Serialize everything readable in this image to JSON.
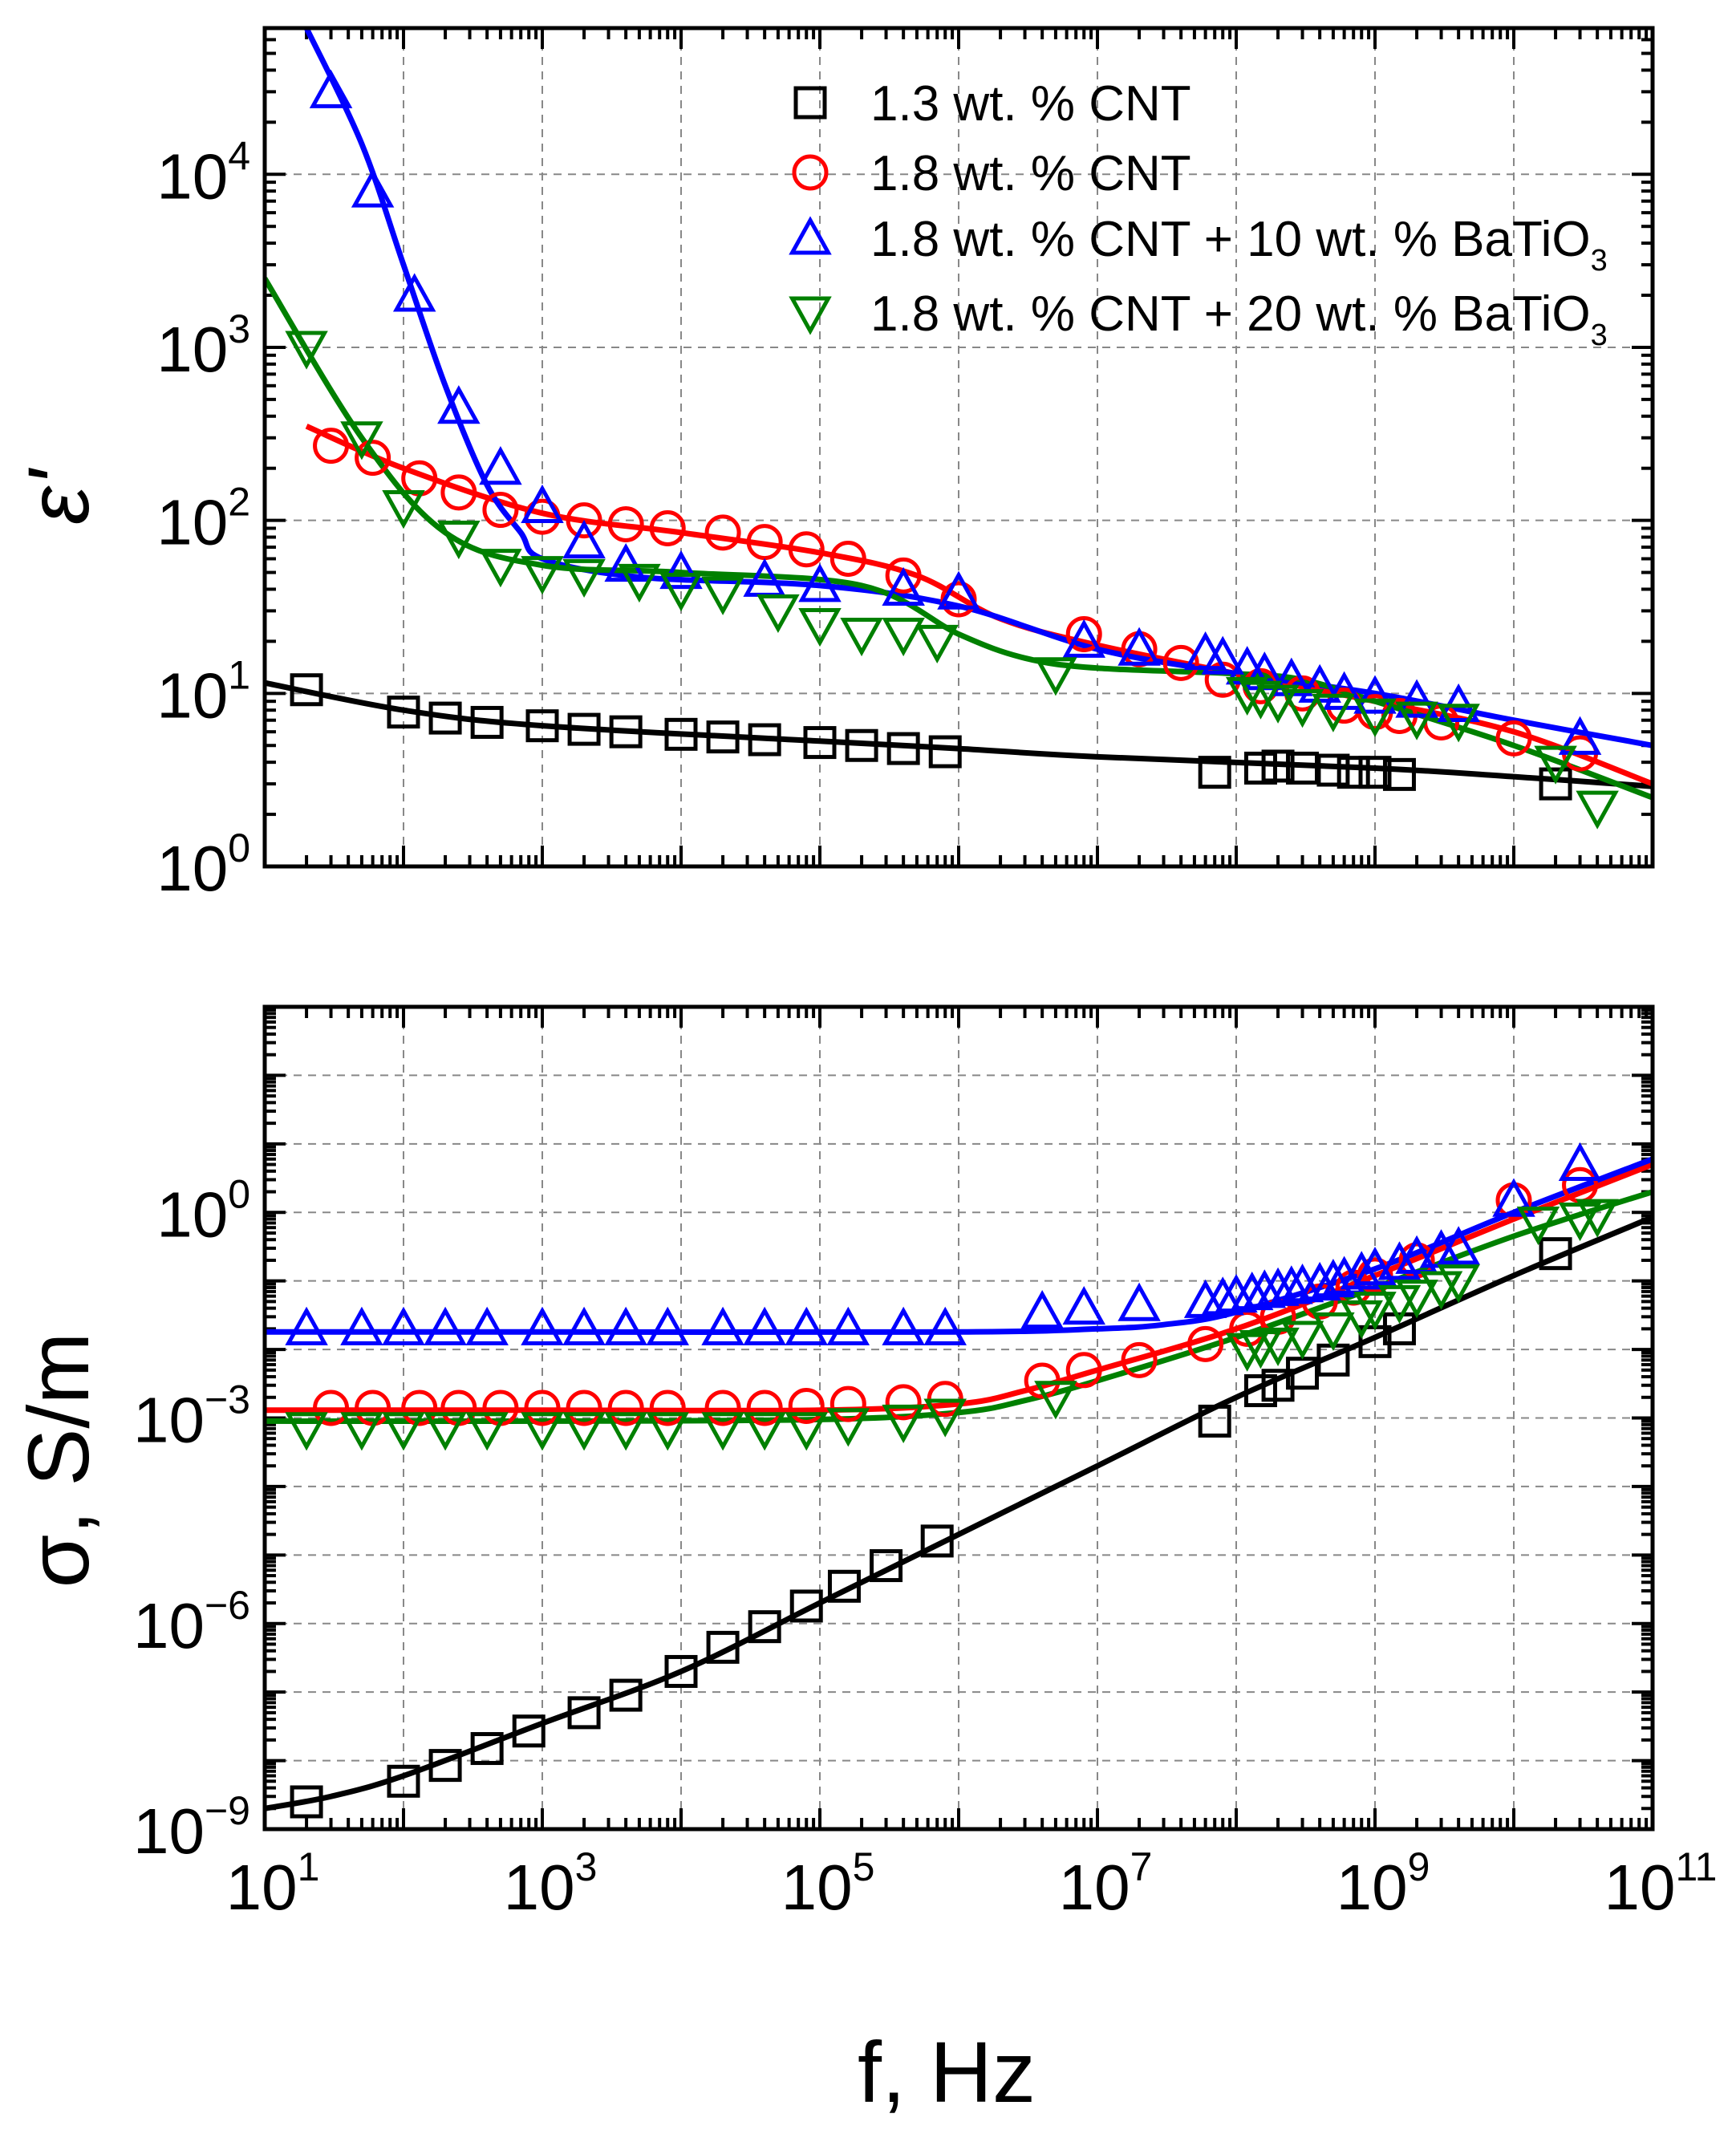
{
  "chart_data": [
    {
      "type": "scatter",
      "ylabel": "ε'",
      "yscale": "log",
      "xscale": "log",
      "xlim": [
        10,
        100000000000
      ],
      "ylim": [
        1,
        70000
      ],
      "grid": true,
      "legend_position": "top-right",
      "y_ticks": [
        {
          "base": "10",
          "exp": "0"
        },
        {
          "base": "10",
          "exp": "1"
        },
        {
          "base": "10",
          "exp": "2"
        },
        {
          "base": "10",
          "exp": "3"
        },
        {
          "base": "10",
          "exp": "4"
        }
      ],
      "series": [
        {
          "name": "1.3 wt. % CNT",
          "name_sub": "",
          "name_tail": "",
          "color": "#000000",
          "marker": "square",
          "x": [
            20,
            100,
            200,
            400,
            1000,
            2000,
            4000,
            10000,
            20000,
            40000,
            100000,
            200000,
            400000,
            800000,
            70000000,
            150000000,
            200000000,
            300000000,
            500000000,
            700000000,
            1000000000,
            1500000000,
            20000000000
          ],
          "y": [
            10.5,
            7.8,
            7.2,
            6.8,
            6.5,
            6.2,
            6.0,
            5.8,
            5.6,
            5.4,
            5.2,
            5.0,
            4.8,
            4.6,
            3.5,
            3.7,
            3.8,
            3.7,
            3.6,
            3.5,
            3.5,
            3.4,
            3.0
          ],
          "fit_x": [
            10,
            100,
            1000,
            100000,
            1000000,
            10000000,
            1000000000,
            10000000000,
            100000000000
          ],
          "fit_y": [
            11.5,
            8.0,
            6.5,
            5.3,
            4.8,
            4.3,
            3.7,
            3.3,
            2.9
          ]
        },
        {
          "name": "1.8 wt. % CNT",
          "name_sub": "",
          "name_tail": "",
          "color": "#ff0000",
          "marker": "circle",
          "x": [
            30,
            60,
            130,
            250,
            500,
            1000,
            2000,
            4000,
            8000,
            20000,
            40000,
            80000,
            160000,
            400000,
            1000000,
            8000000,
            20000000,
            40000000,
            80000000,
            150000000,
            300000000,
            600000000,
            1000000000,
            1500000000,
            3000000000,
            10000000000,
            30000000000
          ],
          "y": [
            270,
            230,
            175,
            145,
            115,
            105,
            100,
            95,
            90,
            85,
            75,
            68,
            60,
            48,
            35,
            22,
            18,
            15,
            12,
            11,
            10,
            8.5,
            7.8,
            7.4,
            6.8,
            5.5,
            4.5
          ],
          "fit_x": [
            20,
            100,
            1000,
            10000,
            100000,
            500000,
            2000000,
            10000000,
            100000000,
            1000000000,
            10000000000,
            100000000000
          ],
          "fit_y": [
            350,
            200,
            110,
            85,
            65,
            48,
            27,
            19,
            13,
            9,
            6,
            3.0
          ]
        },
        {
          "name": "1.8 wt. % CNT + 10 wt. % BaTiO",
          "name_sub": "3",
          "name_tail": "",
          "color": "#0000ff",
          "marker": "triangle-up",
          "x": [
            30,
            60,
            120,
            250,
            500,
            1000,
            2000,
            4000,
            10000,
            40000,
            100000,
            400000,
            1000000,
            8000000,
            20000000,
            60000000,
            80000000,
            120000000,
            160000000,
            250000000,
            400000000,
            600000000,
            1000000000,
            2000000000,
            4000000000,
            30000000000
          ],
          "y": [
            30000,
            8000,
            2000,
            450,
            200,
            120,
            75,
            55,
            50,
            45,
            42,
            40,
            38,
            20,
            18,
            17,
            16,
            14,
            13,
            12,
            11,
            10,
            9.5,
            9,
            8.5,
            5.5
          ],
          "fit_x": [
            20,
            50,
            100,
            200,
            400,
            700,
            1000,
            5000,
            100000,
            1000000,
            10000000,
            100000000,
            1000000000,
            10000000000,
            100000000000
          ],
          "fit_y": [
            70000,
            15000,
            3000,
            600,
            160,
            85,
            60,
            47,
            42,
            32,
            18,
            13,
            10,
            7,
            5
          ]
        },
        {
          "name": "1.8 wt. % CNT + 20 wt. % BaTiO",
          "name_sub": "3",
          "name_tail": "",
          "color": "#008000",
          "marker": "triangle-down",
          "x": [
            20,
            50,
            100,
            250,
            500,
            1000,
            2000,
            5000,
            10000,
            20000,
            50000,
            100000,
            200000,
            400000,
            700000,
            5000000,
            120000000,
            150000000,
            200000000,
            300000000,
            500000000,
            1000000000,
            2000000000,
            4000000000,
            20000000000,
            40000000000
          ],
          "y": [
            1000,
            300,
            120,
            80,
            55,
            50,
            48,
            45,
            40,
            38,
            30,
            25,
            22,
            22,
            20,
            13,
            10,
            9.5,
            9,
            8.5,
            8,
            7.5,
            7.2,
            7,
            4,
            2.2
          ],
          "fit_x": [
            10,
            50,
            200,
            1000,
            10000,
            200000,
            1000000,
            3000000,
            10000000,
            100000000,
            300000000,
            1000000000,
            10000000000,
            100000000000
          ],
          "fit_y": [
            2500,
            300,
            85,
            55,
            50,
            42,
            22,
            16,
            14,
            13,
            12,
            9,
            5,
            2.5
          ]
        }
      ]
    },
    {
      "type": "scatter",
      "ylabel": "σ, S/m",
      "xlabel": "f, Hz",
      "yscale": "log",
      "xscale": "log",
      "xlim": [
        10,
        100000000000
      ],
      "ylim": [
        1e-09,
        1000
      ],
      "grid": true,
      "x_ticks": [
        {
          "base": "10",
          "exp": "1"
        },
        {
          "base": "10",
          "exp": "3"
        },
        {
          "base": "10",
          "exp": "5"
        },
        {
          "base": "10",
          "exp": "7"
        },
        {
          "base": "10",
          "exp": "9"
        },
        {
          "base": "10",
          "exp": "11"
        }
      ],
      "y_ticks": [
        {
          "base": "10",
          "exp": "−9"
        },
        {
          "base": "10",
          "exp": "−6"
        },
        {
          "base": "10",
          "exp": "−3"
        },
        {
          "base": "10",
          "exp": "0"
        }
      ],
      "series": [
        {
          "name": "1.3 wt. % CNT",
          "color": "#000000",
          "marker": "square",
          "x": [
            20,
            100,
            200,
            400,
            800,
            2000,
            4000,
            10000,
            20000,
            40000,
            80000,
            150000,
            300000,
            700000,
            70000000,
            150000000,
            200000000,
            300000000,
            500000000,
            1000000000,
            1500000000,
            20000000000
          ],
          "y": [
            2.5e-09,
            5e-09,
            8.5e-09,
            1.5e-08,
            2.7e-08,
            5e-08,
            9e-08,
            2e-07,
            4.5e-07,
            9e-07,
            1.8e-06,
            3.5e-06,
            7e-06,
            1.6e-05,
            0.0009,
            0.0025,
            0.003,
            0.0045,
            0.007,
            0.013,
            0.02,
            0.25
          ],
          "fit_x": [
            10,
            30,
            100,
            1000,
            10000,
            100000,
            1000000,
            10000000,
            100000000,
            1000000000,
            10000000000,
            100000000000
          ],
          "fit_y": [
            2e-09,
            3e-09,
            6e-09,
            3.5e-08,
            2e-07,
            2e-06,
            2e-05,
            0.0002,
            0.002,
            0.015,
            0.12,
            0.85
          ]
        },
        {
          "name": "1.8 wt. % CNT",
          "color": "#ff0000",
          "marker": "circle",
          "x": [
            30,
            60,
            130,
            250,
            500,
            1000,
            2000,
            4000,
            8000,
            20000,
            40000,
            80000,
            160000,
            400000,
            800000,
            4000000,
            8000000,
            20000000,
            60000000,
            120000000,
            200000000,
            400000000,
            700000000,
            1000000000,
            2000000000,
            10000000000,
            30000000000
          ],
          "y": [
            0.0014,
            0.0014,
            0.0014,
            0.0014,
            0.0014,
            0.0014,
            0.0014,
            0.0014,
            0.0014,
            0.0014,
            0.0014,
            0.0015,
            0.0016,
            0.0017,
            0.0019,
            0.0035,
            0.005,
            0.007,
            0.012,
            0.02,
            0.03,
            0.05,
            0.08,
            0.12,
            0.2,
            1.5,
            2.5
          ],
          "fit_x": [
            10,
            100,
            1000,
            100000,
            1000000,
            3000000,
            10000000,
            100000000,
            1000000000,
            10000000000,
            100000000000
          ],
          "fit_y": [
            0.0013,
            0.0013,
            0.0013,
            0.0013,
            0.0016,
            0.0025,
            0.005,
            0.02,
            0.12,
            0.8,
            5
          ]
        },
        {
          "name": "1.8 wt. % CNT + 10 wt. % BaTiO3",
          "color": "#0000ff",
          "marker": "triangle-up",
          "x": [
            20,
            50,
            100,
            200,
            400,
            1000,
            2000,
            4000,
            8000,
            20000,
            40000,
            80000,
            160000,
            400000,
            800000,
            4000000,
            8000000,
            20000000,
            60000000,
            80000000,
            100000000,
            130000000,
            160000000,
            200000000,
            250000000,
            300000000,
            400000000,
            500000000,
            600000000,
            800000000,
            1000000000,
            1500000000,
            2000000000,
            3000000000,
            4000000000,
            10000000000,
            30000000000
          ],
          "y": [
            0.02,
            0.02,
            0.02,
            0.02,
            0.02,
            0.02,
            0.02,
            0.02,
            0.02,
            0.02,
            0.02,
            0.02,
            0.02,
            0.02,
            0.02,
            0.035,
            0.04,
            0.045,
            0.05,
            0.055,
            0.06,
            0.065,
            0.07,
            0.075,
            0.08,
            0.085,
            0.09,
            0.1,
            0.11,
            0.13,
            0.15,
            0.18,
            0.22,
            0.27,
            0.3,
            1.5,
            5
          ],
          "fit_x": [
            10,
            1000,
            1000000,
            10000000,
            30000000,
            100000000,
            1000000000,
            10000000000,
            100000000000
          ],
          "fit_y": [
            0.018,
            0.018,
            0.018,
            0.02,
            0.023,
            0.035,
            0.15,
            1.0,
            6
          ]
        },
        {
          "name": "1.8 wt. % CNT + 20 wt. % BaTiO3",
          "color": "#008000",
          "marker": "triangle-down",
          "x": [
            20,
            50,
            100,
            200,
            400,
            1000,
            2000,
            4000,
            8000,
            20000,
            40000,
            80000,
            160000,
            400000,
            800000,
            5000000,
            120000000,
            150000000,
            200000000,
            300000000,
            500000000,
            800000000,
            1000000000,
            1500000000,
            2000000000,
            3000000000,
            4000000000,
            15000000000,
            30000000000,
            40000000000
          ],
          "y": [
            0.0007,
            0.0007,
            0.0007,
            0.0007,
            0.0007,
            0.0007,
            0.0007,
            0.0007,
            0.0007,
            0.0007,
            0.0007,
            0.0007,
            0.0008,
            0.0009,
            0.0011,
            0.002,
            0.01,
            0.011,
            0.012,
            0.015,
            0.02,
            0.03,
            0.04,
            0.05,
            0.06,
            0.08,
            0.1,
            0.7,
            0.8,
            0.9
          ],
          "fit_x": [
            10,
            1000,
            100000,
            1000000,
            3000000,
            10000000,
            100000000,
            1000000000,
            10000000000,
            100000000000
          ],
          "fit_y": [
            0.0009,
            0.0009,
            0.00095,
            0.0012,
            0.0018,
            0.0035,
            0.015,
            0.08,
            0.45,
            2
          ]
        }
      ]
    }
  ]
}
